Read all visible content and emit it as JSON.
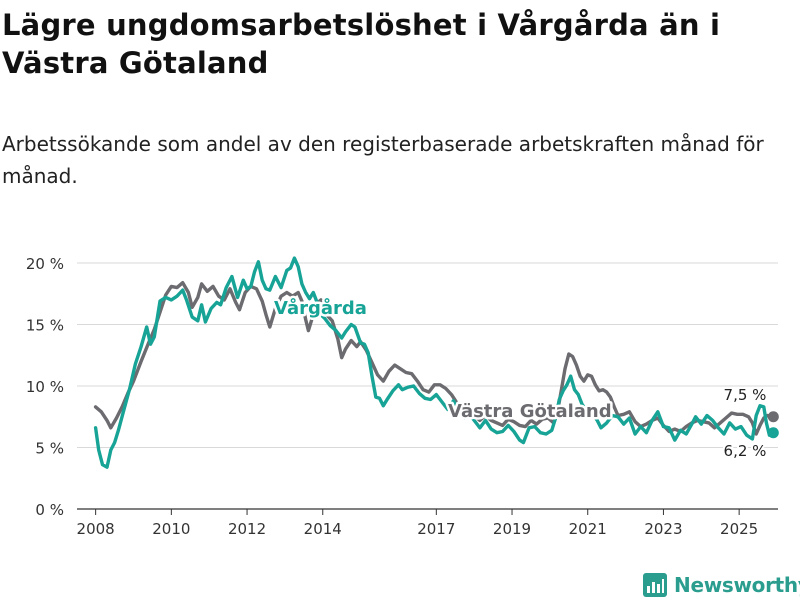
{
  "header": {
    "title": "Lägre ungdomsarbetslöshet i Vårgårda än i Västra Götaland",
    "subtitle": "Arbetssökande som andel av den registerbaserade arbetskraften månad för månad."
  },
  "brand": {
    "name": "Newsworthy"
  },
  "colors": {
    "vargarda": "#17a497",
    "vastra": "#6b6b70",
    "grid": "#d9d9d9",
    "brand": "#2a9d8f"
  },
  "chart_data": {
    "type": "line",
    "title": "Lägre ungdomsarbetslöshet i Vårgårda än i Västra Götaland",
    "subtitle": "Arbetssökande som andel av den registerbaserade arbetskraften månad för månad.",
    "xlabel": "",
    "ylabel": "",
    "x_range": [
      2007.6,
      2026.0
    ],
    "ylim": [
      0,
      21
    ],
    "x_ticks": [
      {
        "value": 2008,
        "label": "2008"
      },
      {
        "value": 2010,
        "label": "2010"
      },
      {
        "value": 2012,
        "label": "2012"
      },
      {
        "value": 2014,
        "label": "2014"
      },
      {
        "value": 2017,
        "label": "2017"
      },
      {
        "value": 2019,
        "label": "2019"
      },
      {
        "value": 2021,
        "label": "2021"
      },
      {
        "value": 2023,
        "label": "2023"
      },
      {
        "value": 2025,
        "label": "2025"
      }
    ],
    "y_ticks": [
      {
        "value": 0,
        "label": "0 %"
      },
      {
        "value": 5,
        "label": "5 %"
      },
      {
        "value": 10,
        "label": "10 %"
      },
      {
        "value": 15,
        "label": "15 %"
      },
      {
        "value": 20,
        "label": "20 %"
      }
    ],
    "series": [
      {
        "name": "Västra Götaland",
        "color": "#6b6b70",
        "label": "Västra Götaland",
        "last_value_label": "7,5 %",
        "points": [
          [
            2008.0,
            8.3
          ],
          [
            2008.15,
            7.9
          ],
          [
            2008.3,
            7.2
          ],
          [
            2008.4,
            6.6
          ],
          [
            2008.55,
            7.4
          ],
          [
            2008.7,
            8.3
          ],
          [
            2008.85,
            9.4
          ],
          [
            2009.0,
            10.4
          ],
          [
            2009.2,
            12.0
          ],
          [
            2009.4,
            13.5
          ],
          [
            2009.55,
            14.6
          ],
          [
            2009.7,
            16.0
          ],
          [
            2009.85,
            17.4
          ],
          [
            2010.0,
            18.1
          ],
          [
            2010.15,
            18.0
          ],
          [
            2010.3,
            18.4
          ],
          [
            2010.45,
            17.6
          ],
          [
            2010.55,
            16.4
          ],
          [
            2010.7,
            17.2
          ],
          [
            2010.8,
            18.3
          ],
          [
            2010.95,
            17.7
          ],
          [
            2011.1,
            18.1
          ],
          [
            2011.25,
            17.3
          ],
          [
            2011.4,
            17.0
          ],
          [
            2011.55,
            17.9
          ],
          [
            2011.7,
            16.8
          ],
          [
            2011.8,
            16.2
          ],
          [
            2011.95,
            17.6
          ],
          [
            2012.1,
            18.1
          ],
          [
            2012.25,
            17.9
          ],
          [
            2012.4,
            16.9
          ],
          [
            2012.5,
            15.8
          ],
          [
            2012.6,
            14.8
          ],
          [
            2012.75,
            16.3
          ],
          [
            2012.9,
            17.3
          ],
          [
            2013.05,
            17.6
          ],
          [
            2013.2,
            17.3
          ],
          [
            2013.35,
            17.6
          ],
          [
            2013.45,
            16.9
          ],
          [
            2013.55,
            15.4
          ],
          [
            2013.62,
            14.5
          ],
          [
            2013.7,
            15.3
          ],
          [
            2013.8,
            16.6
          ],
          [
            2013.95,
            17.0
          ],
          [
            2014.1,
            15.8
          ],
          [
            2014.25,
            15.3
          ],
          [
            2014.4,
            13.8
          ],
          [
            2014.5,
            12.3
          ],
          [
            2014.6,
            13.0
          ],
          [
            2014.75,
            13.7
          ],
          [
            2014.9,
            13.2
          ],
          [
            2015.0,
            13.6
          ],
          [
            2015.15,
            12.9
          ],
          [
            2015.3,
            11.9
          ],
          [
            2015.45,
            10.9
          ],
          [
            2015.6,
            10.4
          ],
          [
            2015.75,
            11.2
          ],
          [
            2015.9,
            11.7
          ],
          [
            2016.05,
            11.4
          ],
          [
            2016.2,
            11.1
          ],
          [
            2016.35,
            11.0
          ],
          [
            2016.5,
            10.4
          ],
          [
            2016.65,
            9.7
          ],
          [
            2016.8,
            9.5
          ],
          [
            2016.95,
            10.1
          ],
          [
            2017.1,
            10.1
          ],
          [
            2017.25,
            9.8
          ],
          [
            2017.4,
            9.3
          ],
          [
            2017.55,
            8.6
          ],
          [
            2017.7,
            8.1
          ],
          [
            2017.85,
            7.5
          ],
          [
            2018.0,
            7.6
          ],
          [
            2018.15,
            7.2
          ],
          [
            2018.3,
            7.6
          ],
          [
            2018.45,
            7.2
          ],
          [
            2018.6,
            7.0
          ],
          [
            2018.75,
            6.8
          ],
          [
            2018.9,
            7.3
          ],
          [
            2019.05,
            7.1
          ],
          [
            2019.2,
            6.8
          ],
          [
            2019.35,
            6.7
          ],
          [
            2019.5,
            7.2
          ],
          [
            2019.65,
            6.9
          ],
          [
            2019.8,
            7.3
          ],
          [
            2019.95,
            7.4
          ],
          [
            2020.1,
            7.0
          ],
          [
            2020.2,
            7.9
          ],
          [
            2020.3,
            9.6
          ],
          [
            2020.4,
            11.4
          ],
          [
            2020.5,
            12.6
          ],
          [
            2020.6,
            12.4
          ],
          [
            2020.7,
            11.7
          ],
          [
            2020.8,
            10.8
          ],
          [
            2020.9,
            10.4
          ],
          [
            2021.0,
            10.9
          ],
          [
            2021.1,
            10.8
          ],
          [
            2021.2,
            10.1
          ],
          [
            2021.3,
            9.6
          ],
          [
            2021.4,
            9.7
          ],
          [
            2021.5,
            9.5
          ],
          [
            2021.6,
            9.1
          ],
          [
            2021.7,
            8.3
          ],
          [
            2021.8,
            7.6
          ],
          [
            2021.95,
            7.7
          ],
          [
            2022.1,
            7.9
          ],
          [
            2022.25,
            7.1
          ],
          [
            2022.4,
            6.7
          ],
          [
            2022.55,
            6.9
          ],
          [
            2022.7,
            7.2
          ],
          [
            2022.85,
            7.4
          ],
          [
            2023.0,
            6.8
          ],
          [
            2023.15,
            6.3
          ],
          [
            2023.3,
            6.5
          ],
          [
            2023.45,
            6.3
          ],
          [
            2023.6,
            6.7
          ],
          [
            2023.75,
            7.0
          ],
          [
            2023.9,
            7.2
          ],
          [
            2024.05,
            7.1
          ],
          [
            2024.2,
            7.0
          ],
          [
            2024.35,
            6.6
          ],
          [
            2024.5,
            7.0
          ],
          [
            2024.65,
            7.4
          ],
          [
            2024.8,
            7.8
          ],
          [
            2024.95,
            7.7
          ],
          [
            2025.1,
            7.7
          ],
          [
            2025.25,
            7.5
          ],
          [
            2025.35,
            7.0
          ],
          [
            2025.45,
            6.1
          ],
          [
            2025.55,
            6.8
          ],
          [
            2025.65,
            7.4
          ],
          [
            2025.75,
            7.6
          ],
          [
            2025.85,
            7.5
          ]
        ]
      },
      {
        "name": "Vårgårda",
        "color": "#17a497",
        "label": "Vårgårda",
        "last_value_label": "6,2 %",
        "points": [
          [
            2008.0,
            6.6
          ],
          [
            2008.08,
            4.8
          ],
          [
            2008.18,
            3.6
          ],
          [
            2008.3,
            3.4
          ],
          [
            2008.4,
            4.8
          ],
          [
            2008.5,
            5.4
          ],
          [
            2008.6,
            6.4
          ],
          [
            2008.75,
            8.1
          ],
          [
            2008.9,
            9.8
          ],
          [
            2009.05,
            11.8
          ],
          [
            2009.2,
            13.2
          ],
          [
            2009.35,
            14.8
          ],
          [
            2009.45,
            13.4
          ],
          [
            2009.55,
            14.0
          ],
          [
            2009.7,
            16.9
          ],
          [
            2009.85,
            17.2
          ],
          [
            2010.0,
            17.0
          ],
          [
            2010.15,
            17.3
          ],
          [
            2010.3,
            17.8
          ],
          [
            2010.4,
            17.0
          ],
          [
            2010.55,
            15.6
          ],
          [
            2010.7,
            15.3
          ],
          [
            2010.8,
            16.6
          ],
          [
            2010.9,
            15.2
          ],
          [
            2011.05,
            16.3
          ],
          [
            2011.2,
            16.8
          ],
          [
            2011.3,
            16.6
          ],
          [
            2011.45,
            18.0
          ],
          [
            2011.6,
            18.9
          ],
          [
            2011.75,
            17.2
          ],
          [
            2011.9,
            18.6
          ],
          [
            2012.0,
            17.9
          ],
          [
            2012.1,
            18.1
          ],
          [
            2012.2,
            19.3
          ],
          [
            2012.3,
            20.1
          ],
          [
            2012.4,
            18.6
          ],
          [
            2012.5,
            17.9
          ],
          [
            2012.6,
            17.8
          ],
          [
            2012.75,
            18.9
          ],
          [
            2012.9,
            18.0
          ],
          [
            2013.05,
            19.4
          ],
          [
            2013.15,
            19.6
          ],
          [
            2013.25,
            20.4
          ],
          [
            2013.35,
            19.7
          ],
          [
            2013.45,
            18.3
          ],
          [
            2013.55,
            17.6
          ],
          [
            2013.65,
            17.1
          ],
          [
            2013.75,
            17.6
          ],
          [
            2013.85,
            16.8
          ],
          [
            2013.95,
            15.8
          ],
          [
            2014.05,
            15.5
          ],
          [
            2014.2,
            14.9
          ],
          [
            2014.35,
            14.5
          ],
          [
            2014.5,
            13.9
          ],
          [
            2014.6,
            14.4
          ],
          [
            2014.75,
            15.0
          ],
          [
            2014.85,
            14.8
          ],
          [
            2015.0,
            13.5
          ],
          [
            2015.1,
            13.4
          ],
          [
            2015.2,
            12.7
          ],
          [
            2015.3,
            10.8
          ],
          [
            2015.4,
            9.1
          ],
          [
            2015.5,
            9.0
          ],
          [
            2015.6,
            8.4
          ],
          [
            2015.7,
            8.9
          ],
          [
            2015.85,
            9.6
          ],
          [
            2016.0,
            10.1
          ],
          [
            2016.1,
            9.7
          ],
          [
            2016.25,
            9.9
          ],
          [
            2016.4,
            10.0
          ],
          [
            2016.55,
            9.4
          ],
          [
            2016.7,
            9.0
          ],
          [
            2016.85,
            8.9
          ],
          [
            2017.0,
            9.3
          ],
          [
            2017.15,
            8.7
          ],
          [
            2017.3,
            8.1
          ],
          [
            2017.45,
            8.8
          ],
          [
            2017.6,
            8.1
          ],
          [
            2017.75,
            7.4
          ],
          [
            2017.9,
            7.6
          ],
          [
            2018.05,
            7.0
          ],
          [
            2018.15,
            6.6
          ],
          [
            2018.3,
            7.2
          ],
          [
            2018.45,
            6.5
          ],
          [
            2018.6,
            6.2
          ],
          [
            2018.75,
            6.3
          ],
          [
            2018.9,
            6.8
          ],
          [
            2019.05,
            6.3
          ],
          [
            2019.2,
            5.6
          ],
          [
            2019.3,
            5.4
          ],
          [
            2019.45,
            6.6
          ],
          [
            2019.6,
            6.7
          ],
          [
            2019.75,
            6.2
          ],
          [
            2019.9,
            6.1
          ],
          [
            2020.05,
            6.4
          ],
          [
            2020.15,
            7.4
          ],
          [
            2020.25,
            8.9
          ],
          [
            2020.35,
            9.6
          ],
          [
            2020.45,
            10.1
          ],
          [
            2020.55,
            10.8
          ],
          [
            2020.65,
            9.7
          ],
          [
            2020.75,
            9.3
          ],
          [
            2020.85,
            8.5
          ],
          [
            2020.95,
            8.1
          ],
          [
            2021.1,
            7.9
          ],
          [
            2021.25,
            7.2
          ],
          [
            2021.35,
            6.6
          ],
          [
            2021.5,
            7.0
          ],
          [
            2021.65,
            7.6
          ],
          [
            2021.8,
            7.5
          ],
          [
            2021.95,
            6.9
          ],
          [
            2022.1,
            7.4
          ],
          [
            2022.25,
            6.1
          ],
          [
            2022.4,
            6.7
          ],
          [
            2022.55,
            6.2
          ],
          [
            2022.7,
            7.2
          ],
          [
            2022.85,
            7.9
          ],
          [
            2023.0,
            6.7
          ],
          [
            2023.15,
            6.6
          ],
          [
            2023.3,
            5.6
          ],
          [
            2023.45,
            6.4
          ],
          [
            2023.6,
            6.1
          ],
          [
            2023.75,
            6.9
          ],
          [
            2023.85,
            7.5
          ],
          [
            2024.0,
            6.9
          ],
          [
            2024.15,
            7.6
          ],
          [
            2024.3,
            7.2
          ],
          [
            2024.45,
            6.6
          ],
          [
            2024.6,
            6.1
          ],
          [
            2024.75,
            7.0
          ],
          [
            2024.9,
            6.5
          ],
          [
            2025.05,
            6.7
          ],
          [
            2025.2,
            6.0
          ],
          [
            2025.35,
            5.7
          ],
          [
            2025.45,
            7.6
          ],
          [
            2025.55,
            8.4
          ],
          [
            2025.65,
            8.3
          ],
          [
            2025.72,
            7.0
          ],
          [
            2025.8,
            6.0
          ],
          [
            2025.85,
            6.2
          ]
        ]
      }
    ]
  }
}
